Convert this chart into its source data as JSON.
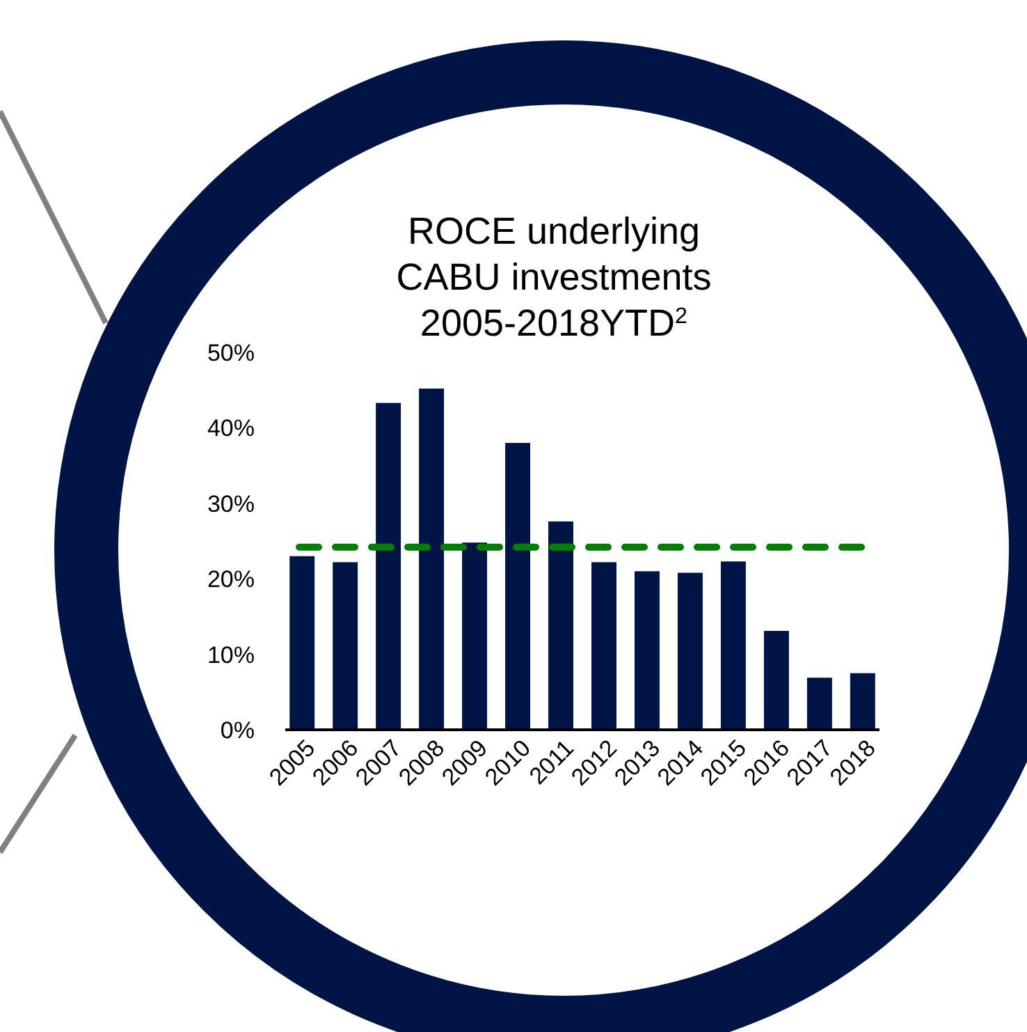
{
  "chart_data": {
    "type": "bar",
    "title": "ROCE underlying\nCABU investments\n2005-2018YTD$^{2}$",
    "categories": [
      "2005",
      "2006",
      "2007",
      "2008",
      "2009",
      "2010",
      "2011",
      "2012",
      "2013",
      "2014",
      "2015",
      "2016",
      "2017",
      "2018"
    ],
    "values": [
      23.0,
      22.2,
      43.3,
      45.2,
      24.8,
      38.0,
      27.6,
      22.2,
      21.0,
      20.8,
      22.3,
      13.1,
      6.9,
      7.5
    ],
    "color": "#001446",
    "ylim": [
      0,
      50
    ],
    "yticks": [
      {
        "value": 0,
        "label": "0%"
      },
      {
        "value": 10,
        "label": "10%"
      },
      {
        "value": 20,
        "label": "20%"
      },
      {
        "value": 30,
        "label": "30%"
      },
      {
        "value": 40,
        "label": "40%"
      },
      {
        "value": 50,
        "label": "50%"
      }
    ],
    "ref_lines": [
      {
        "axis": "y",
        "value": 24.2,
        "color": "#008000",
        "line_style": "dashed"
      }
    ],
    "grid": false
  }
}
